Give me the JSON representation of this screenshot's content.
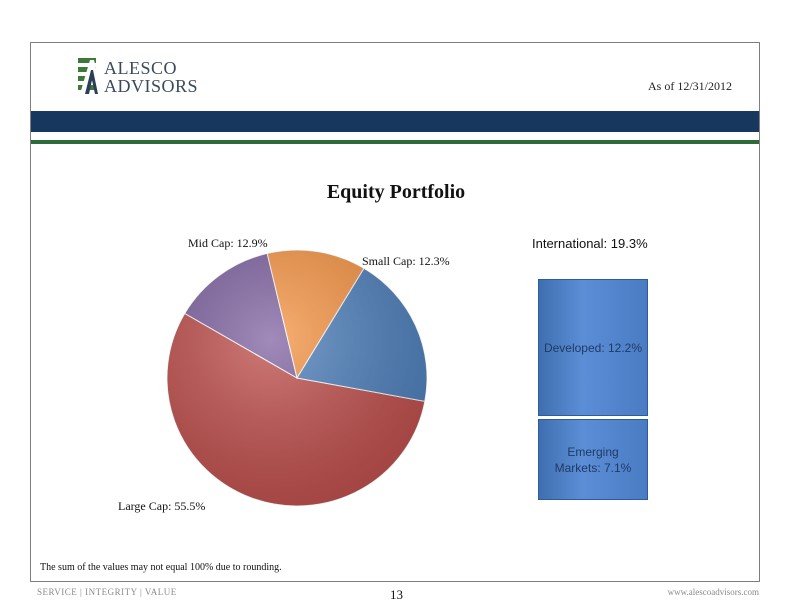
{
  "header": {
    "logo_word1": "ALESCO",
    "logo_word2": "ADVISORS",
    "as_of": "As of 12/31/2012"
  },
  "colors": {
    "navy_bar": "#17375e",
    "green_bar": "#2f6b3a",
    "large_cap": "#c0504d",
    "mid_cap": "#8064a2",
    "small_cap": "#f79646",
    "international": "#4f81bd"
  },
  "chart_data": [
    {
      "type": "pie",
      "title": "Equity Portfolio",
      "series": [
        {
          "label": "Large Cap: 55.5%",
          "value": 55.5
        },
        {
          "label": "Mid Cap: 12.9%",
          "value": 12.9
        },
        {
          "label": "Small Cap: 12.3%",
          "value": 12.3
        },
        {
          "label": "International: 19.3%",
          "value": 19.3
        }
      ]
    },
    {
      "type": "bar",
      "title": "International: 19.3%",
      "categories": [
        "Developed: 12.2%",
        "Emerging Markets: 7.1%"
      ],
      "values": [
        12.2,
        7.1
      ]
    }
  ],
  "labels": {
    "developed": "Developed: 12.2%",
    "emerging_line1": "Emerging",
    "emerging_line2": "Markets: 7.1%"
  },
  "note": "The sum of the values may not equal 100% due to rounding.",
  "footer": {
    "left": "SERVICE | INTEGRITY | VALUE",
    "page": "13",
    "right": "www.alescoadvisors.com"
  }
}
